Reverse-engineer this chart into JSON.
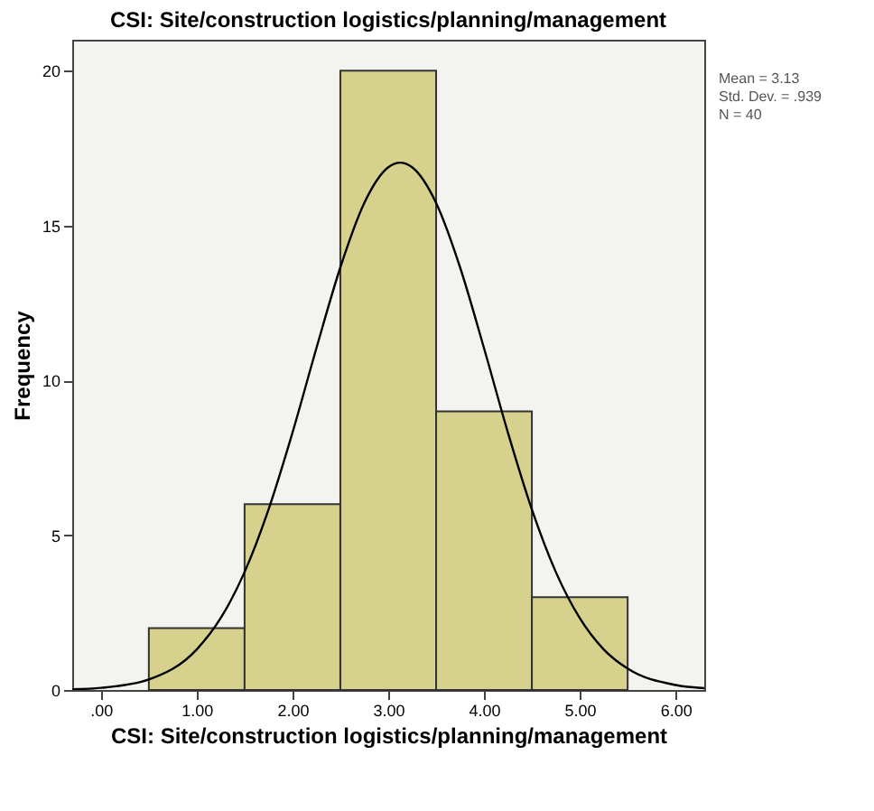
{
  "chart_data": {
    "type": "histogram",
    "title": "CSI: Site/construction logistics/planning/management",
    "xlabel": "CSI: Site/construction logistics/planning/management",
    "ylabel": "Frequency",
    "bins": [
      0.5,
      1.5,
      2.5,
      3.5,
      4.5,
      5.5
    ],
    "values": [
      2,
      6,
      20,
      9,
      3
    ],
    "color": "#d6d28e",
    "series": [
      {
        "type": "line",
        "color": "#000000",
        "x": [
          -0.3,
          0.0,
          0.5,
          1.0,
          1.25,
          1.5,
          1.75,
          2.0,
          2.25,
          2.5,
          2.75,
          3.0,
          3.125,
          3.25,
          3.5,
          3.75,
          4.0,
          4.25,
          4.5,
          4.75,
          5.0,
          5.25,
          5.5,
          6.0,
          6.3
        ],
        "values": [
          0.02,
          0.07,
          0.34,
          1.31,
          2.32,
          3.81,
          5.83,
          8.31,
          11.04,
          13.65,
          15.73,
          16.88,
          17.03,
          16.88,
          15.73,
          13.65,
          11.04,
          8.31,
          5.83,
          3.81,
          2.32,
          1.31,
          0.69,
          0.16,
          0.06
        ]
      }
    ],
    "xlim": [
      -0.3,
      6.3
    ],
    "ylim": [
      0,
      21
    ],
    "xticks": [
      {
        "value": 0,
        "label": ".00"
      },
      {
        "value": 1,
        "label": "1.00"
      },
      {
        "value": 2,
        "label": "2.00"
      },
      {
        "value": 3,
        "label": "3.00"
      },
      {
        "value": 4,
        "label": "4.00"
      },
      {
        "value": 5,
        "label": "5.00"
      },
      {
        "value": 6,
        "label": "6.00"
      }
    ],
    "yticks": [
      0,
      5,
      10,
      15,
      20
    ],
    "annotations": [
      "Mean = 3.13",
      "Std. Dev. = .939",
      "N = 40"
    ],
    "grid": false
  }
}
